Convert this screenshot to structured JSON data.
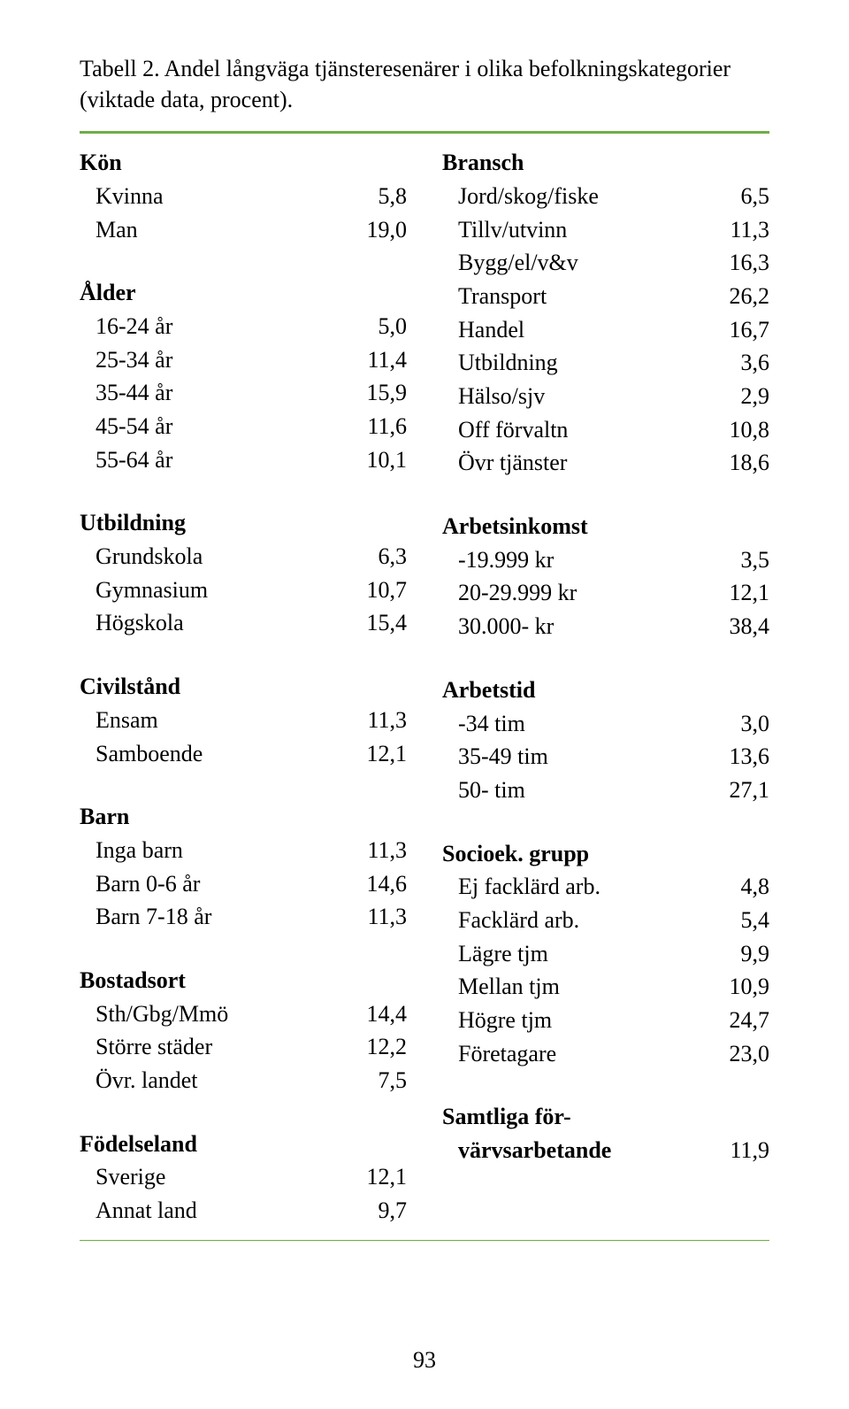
{
  "caption": "Tabell 2. Andel långväga tjänsteresenärer i olika befolkningskategorier (viktade data, procent).",
  "rule_color": "#70ad47",
  "pagenum": "93",
  "left": [
    {
      "type": "header",
      "label": "Kön"
    },
    {
      "type": "row",
      "label": "Kvinna",
      "value": "5,8"
    },
    {
      "type": "row",
      "label": "Man",
      "value": "19,0"
    },
    {
      "type": "spacer"
    },
    {
      "type": "header",
      "label": "Ålder"
    },
    {
      "type": "row",
      "label": "16-24 år",
      "value": "5,0"
    },
    {
      "type": "row",
      "label": "25-34 år",
      "value": "11,4"
    },
    {
      "type": "row",
      "label": "35-44 år",
      "value": "15,9"
    },
    {
      "type": "row",
      "label": "45-54 år",
      "value": "11,6"
    },
    {
      "type": "row",
      "label": "55-64 år",
      "value": "10,1"
    },
    {
      "type": "spacer"
    },
    {
      "type": "header",
      "label": "Utbildning"
    },
    {
      "type": "row",
      "label": "Grundskola",
      "value": "6,3"
    },
    {
      "type": "row",
      "label": "Gymnasium",
      "value": "10,7"
    },
    {
      "type": "row",
      "label": "Högskola",
      "value": "15,4"
    },
    {
      "type": "spacer"
    },
    {
      "type": "header",
      "label": "Civilstånd"
    },
    {
      "type": "row",
      "label": "Ensam",
      "value": "11,3"
    },
    {
      "type": "row",
      "label": "Samboende",
      "value": "12,1"
    },
    {
      "type": "spacer"
    },
    {
      "type": "header",
      "label": "Barn"
    },
    {
      "type": "row",
      "label": "Inga barn",
      "value": "11,3"
    },
    {
      "type": "row",
      "label": "Barn 0-6 år",
      "value": "14,6"
    },
    {
      "type": "row",
      "label": "Barn 7-18 år",
      "value": "11,3"
    },
    {
      "type": "spacer"
    },
    {
      "type": "header",
      "label": "Bostadsort"
    },
    {
      "type": "row",
      "label": "Sth/Gbg/Mmö",
      "value": "14,4"
    },
    {
      "type": "row",
      "label": "Större städer",
      "value": "12,2"
    },
    {
      "type": "row",
      "label": "Övr. landet",
      "value": "7,5"
    },
    {
      "type": "spacer"
    },
    {
      "type": "header",
      "label": "Födelseland"
    },
    {
      "type": "row",
      "label": "Sverige",
      "value": "12,1"
    },
    {
      "type": "row",
      "label": "Annat land",
      "value": "9,7"
    }
  ],
  "right": [
    {
      "type": "header",
      "label": "Bransch"
    },
    {
      "type": "row",
      "label": "Jord/skog/fiske",
      "value": "6,5"
    },
    {
      "type": "row",
      "label": "Tillv/utvinn",
      "value": "11,3"
    },
    {
      "type": "row",
      "label": "Bygg/el/v&v",
      "value": "16,3"
    },
    {
      "type": "row",
      "label": "Transport",
      "value": "26,2"
    },
    {
      "type": "row",
      "label": "Handel",
      "value": "16,7"
    },
    {
      "type": "row",
      "label": "Utbildning",
      "value": "3,6"
    },
    {
      "type": "row",
      "label": "Hälso/sjv",
      "value": "2,9"
    },
    {
      "type": "row",
      "label": "Off förvaltn",
      "value": "10,8"
    },
    {
      "type": "row",
      "label": "Övr tjänster",
      "value": "18,6"
    },
    {
      "type": "spacer"
    },
    {
      "type": "header",
      "label": "Arbetsinkomst"
    },
    {
      "type": "row",
      "label": "-19.999 kr",
      "value": "3,5"
    },
    {
      "type": "row",
      "label": "20-29.999 kr",
      "value": "12,1"
    },
    {
      "type": "row",
      "label": "30.000- kr",
      "value": "38,4"
    },
    {
      "type": "spacer"
    },
    {
      "type": "header",
      "label": "Arbetstid"
    },
    {
      "type": "row",
      "label": "-34 tim",
      "value": "3,0"
    },
    {
      "type": "row",
      "label": "35-49 tim",
      "value": "13,6"
    },
    {
      "type": "row",
      "label": "50- tim",
      "value": "27,1"
    },
    {
      "type": "spacer"
    },
    {
      "type": "header",
      "label": "Socioek. grupp"
    },
    {
      "type": "row",
      "label": "Ej facklärd arb.",
      "value": "4,8"
    },
    {
      "type": "row",
      "label": "Facklärd arb.",
      "value": "5,4"
    },
    {
      "type": "row",
      "label": "Lägre tjm",
      "value": "9,9"
    },
    {
      "type": "row",
      "label": "Mellan tjm",
      "value": "10,9"
    },
    {
      "type": "row",
      "label": "Högre tjm",
      "value": "24,7"
    },
    {
      "type": "row",
      "label": "Företagare",
      "value": "23,0"
    },
    {
      "type": "spacer"
    },
    {
      "type": "header",
      "label": "Samtliga för-"
    },
    {
      "type": "row",
      "label": "värvsarbetande",
      "value": "11,9",
      "boldlabel": true
    }
  ]
}
